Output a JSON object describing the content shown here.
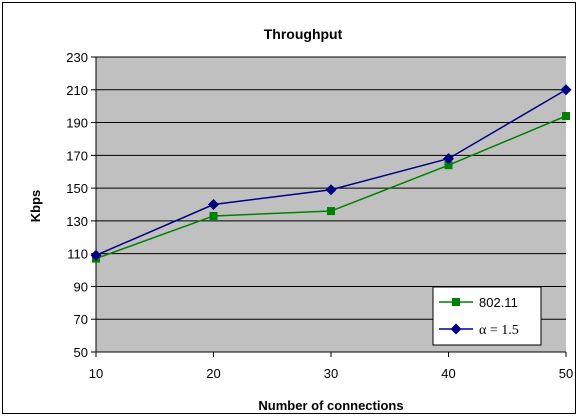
{
  "chart_data": {
    "type": "line",
    "title": "Throughput",
    "xlabel": "Number of connections",
    "ylabel": "Kbps",
    "x": [
      10,
      20,
      30,
      40,
      50
    ],
    "xlim": [
      10,
      50
    ],
    "ylim": [
      50,
      230
    ],
    "yticks": [
      50,
      70,
      90,
      110,
      130,
      150,
      170,
      190,
      210,
      230
    ],
    "xticks": [
      10,
      20,
      30,
      40,
      50
    ],
    "grid": "horizontal",
    "plot_background": "#c0c0c0",
    "legend_position": "bottom-right",
    "series": [
      {
        "name": "802.11",
        "values": [
          107,
          133,
          136,
          164,
          194
        ],
        "color": "#008000",
        "marker": "square"
      },
      {
        "name": "α = 1.5",
        "values": [
          109,
          140,
          149,
          168,
          210
        ],
        "color": "#000080",
        "marker": "diamond"
      }
    ]
  }
}
